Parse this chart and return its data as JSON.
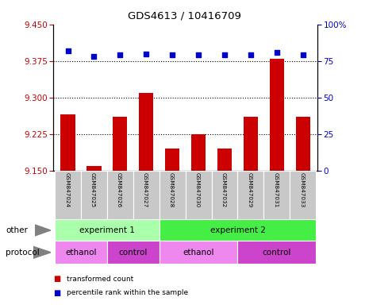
{
  "title": "GDS4613 / 10416709",
  "samples": [
    "GSM847024",
    "GSM847025",
    "GSM847026",
    "GSM847027",
    "GSM847028",
    "GSM847030",
    "GSM847032",
    "GSM847029",
    "GSM847031",
    "GSM847033"
  ],
  "transformed_count": [
    9.265,
    9.16,
    9.26,
    9.31,
    9.195,
    9.225,
    9.195,
    9.26,
    9.38,
    9.26
  ],
  "percentile_rank": [
    82,
    78,
    79,
    80,
    79,
    79,
    79,
    79,
    81,
    79
  ],
  "ylim_left": [
    9.15,
    9.45
  ],
  "ylim_right": [
    0,
    100
  ],
  "yticks_left": [
    9.15,
    9.225,
    9.3,
    9.375,
    9.45
  ],
  "yticks_right": [
    0,
    25,
    50,
    75,
    100
  ],
  "bar_color": "#cc0000",
  "dot_color": "#0000cc",
  "bar_bottom": 9.15,
  "dotted_line_y": [
    9.225,
    9.3,
    9.375
  ],
  "exp1_color": "#aaffaa",
  "exp2_color": "#44ee44",
  "ethanol_color": "#ee88ee",
  "control_color": "#cc44cc",
  "sample_bg": "#c8c8c8",
  "n_samples": 10
}
